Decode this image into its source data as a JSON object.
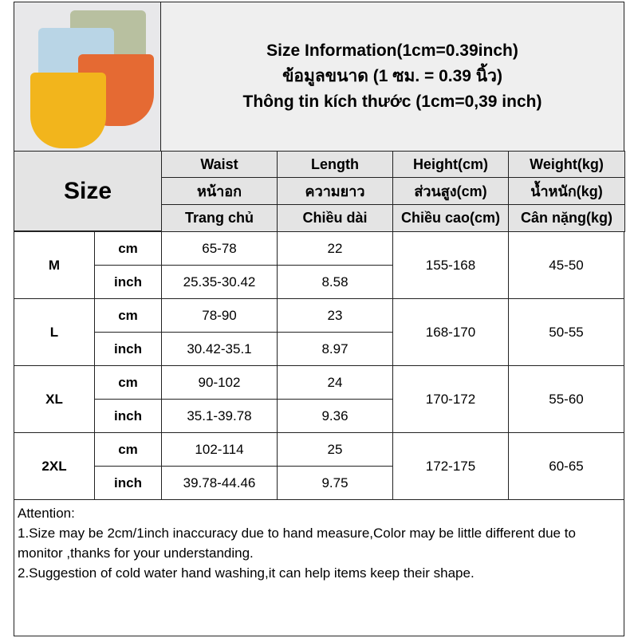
{
  "title": {
    "line1": "Size Information(1cm=0.39inch)",
    "line2": "ข้อมูลขนาด (1 ซม. = 0.39 นิ้ว)",
    "line3": "Thông tin kích thước (1cm=0,39 inch)"
  },
  "size_label": "Size",
  "columns": [
    {
      "en": "Waist",
      "th": "หน้าอก",
      "vi": "Trang chủ"
    },
    {
      "en": "Length",
      "th": "ความยาว",
      "vi": "Chiều dài"
    },
    {
      "en": "Height(cm)",
      "th": "ส่วนสูง(cm)",
      "vi": "Chiều cao(cm)"
    },
    {
      "en": "Weight(kg)",
      "th": "น้ำหนัก(kg)",
      "vi": "Cân nặng(kg)"
    }
  ],
  "unit_cm": "cm",
  "unit_inch": "inch",
  "rows": [
    {
      "size": "M",
      "waist_cm": "65-78",
      "length_cm": "22",
      "waist_in": "25.35-30.42",
      "length_in": "8.58",
      "height": "155-168",
      "weight": "45-50"
    },
    {
      "size": "L",
      "waist_cm": "78-90",
      "length_cm": "23",
      "waist_in": "30.42-35.1",
      "length_in": "8.97",
      "height": "168-170",
      "weight": "50-55"
    },
    {
      "size": "XL",
      "waist_cm": "90-102",
      "length_cm": "24",
      "waist_in": "35.1-39.78",
      "length_in": "9.36",
      "height": "170-172",
      "weight": "55-60"
    },
    {
      "size": "2XL",
      "waist_cm": "102-114",
      "length_cm": "25",
      "waist_in": "39.78-44.46",
      "length_in": "9.75",
      "height": "172-175",
      "weight": "60-65"
    }
  ],
  "notes": {
    "heading": "Attention:",
    "n1": "1.Size may be 2cm/1inch inaccuracy due to hand measure,Color may be little different due to monitor ,thanks for your understanding.",
    "n2": "2.Suggestion of cold water hand washing,it can help items keep their shape."
  },
  "colors": {
    "header_bg": "#e4e4e4",
    "border": "#222222"
  }
}
